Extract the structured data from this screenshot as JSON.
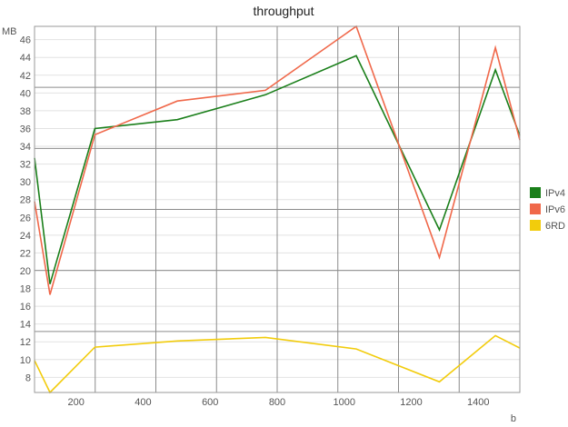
{
  "chart_data": {
    "type": "line",
    "title": "throughput",
    "xlabel": "b",
    "ylabel": "MB",
    "xlim": [
      76,
      1524
    ],
    "ylim": [
      6.3,
      47.5
    ],
    "x_ticks": [
      "200",
      "400",
      "600",
      "800",
      "1000",
      "1200",
      "1400"
    ],
    "y_ticks": [
      "8",
      "10",
      "12",
      "14",
      "16",
      "18",
      "20",
      "22",
      "24",
      "26",
      "28",
      "30",
      "32",
      "34",
      "36",
      "38",
      "40",
      "42",
      "44",
      "46"
    ],
    "grid": true,
    "legend_position": "right",
    "series": [
      {
        "name": "IPv4",
        "color": "#1a7f1a",
        "x": [
          76,
          122,
          256,
          502,
          765,
          1036,
          1284,
          1451,
          1524
        ],
        "y": [
          32.7,
          18.5,
          36.0,
          37.0,
          39.8,
          44.2,
          24.6,
          42.6,
          35.2
        ]
      },
      {
        "name": "IPv6",
        "color": "#f0684a",
        "x": [
          76,
          122,
          256,
          502,
          765,
          1036,
          1284,
          1451,
          1524
        ],
        "y": [
          27.8,
          17.3,
          35.3,
          39.1,
          40.3,
          47.5,
          21.5,
          45.1,
          34.7
        ]
      },
      {
        "name": "6RD",
        "color": "#f2cc0c",
        "x": [
          76,
          122,
          256,
          502,
          765,
          1036,
          1284,
          1451,
          1524
        ],
        "y": [
          9.9,
          6.3,
          11.4,
          12.1,
          12.5,
          11.2,
          7.5,
          12.7,
          11.3
        ]
      }
    ]
  }
}
